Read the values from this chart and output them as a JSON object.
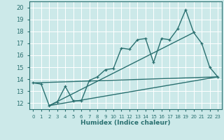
{
  "xlabel": "Humidex (Indice chaleur)",
  "xlim": [
    -0.5,
    23.5
  ],
  "ylim": [
    11.5,
    20.5
  ],
  "yticks": [
    12,
    13,
    14,
    15,
    16,
    17,
    18,
    19,
    20
  ],
  "xticks": [
    0,
    1,
    2,
    3,
    4,
    5,
    6,
    7,
    8,
    9,
    10,
    11,
    12,
    13,
    14,
    15,
    16,
    17,
    18,
    19,
    20,
    21,
    22,
    23
  ],
  "bg_color": "#cce9e9",
  "grid_color": "#b0d4d4",
  "line_color": "#2a7070",
  "line1_x": [
    0,
    1,
    2,
    3,
    4,
    5,
    6,
    7,
    8,
    9,
    10,
    11,
    12,
    13,
    14,
    15,
    16,
    17,
    18,
    19,
    20,
    21,
    22,
    23
  ],
  "line1_y": [
    13.7,
    13.6,
    11.8,
    12.1,
    13.4,
    12.2,
    12.2,
    13.9,
    14.2,
    14.8,
    14.9,
    16.6,
    16.5,
    17.3,
    17.4,
    15.4,
    17.4,
    17.3,
    18.2,
    19.8,
    17.9,
    17.0,
    15.0,
    14.2
  ],
  "line2_x": [
    2,
    23
  ],
  "line2_y": [
    11.8,
    14.2
  ],
  "line3_x": [
    2,
    20
  ],
  "line3_y": [
    11.8,
    17.9
  ],
  "line4_x": [
    0,
    23
  ],
  "line4_y": [
    13.7,
    14.2
  ],
  "marker_size": 3.5,
  "line_width": 1.0
}
